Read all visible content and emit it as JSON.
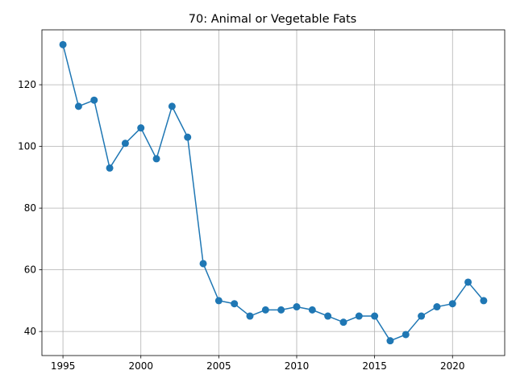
{
  "chart_data": {
    "type": "line",
    "title": "70: Animal or Vegetable Fats",
    "xlabel": "",
    "ylabel": "",
    "x": [
      1995,
      1996,
      1997,
      1998,
      1999,
      2000,
      2001,
      2002,
      2003,
      2004,
      2005,
      2006,
      2007,
      2008,
      2009,
      2010,
      2011,
      2012,
      2013,
      2014,
      2015,
      2016,
      2017,
      2018,
      2019,
      2020,
      2021,
      2022
    ],
    "series": [
      {
        "values": [
          133,
          113,
          115,
          93,
          101,
          106,
          96,
          113,
          103,
          62,
          50,
          49,
          45,
          47,
          47,
          48,
          47,
          45,
          43,
          45,
          45,
          37,
          39,
          45,
          48,
          49,
          56,
          50
        ],
        "color": "#1f77b4"
      }
    ],
    "xlim": [
      1993.65,
      2023.35
    ],
    "ylim": [
      32.2,
      137.8
    ],
    "xticks": [
      1995,
      2000,
      2005,
      2010,
      2015,
      2020
    ],
    "yticks": [
      40,
      60,
      80,
      100,
      120
    ],
    "grid": true,
    "legend": "none"
  }
}
